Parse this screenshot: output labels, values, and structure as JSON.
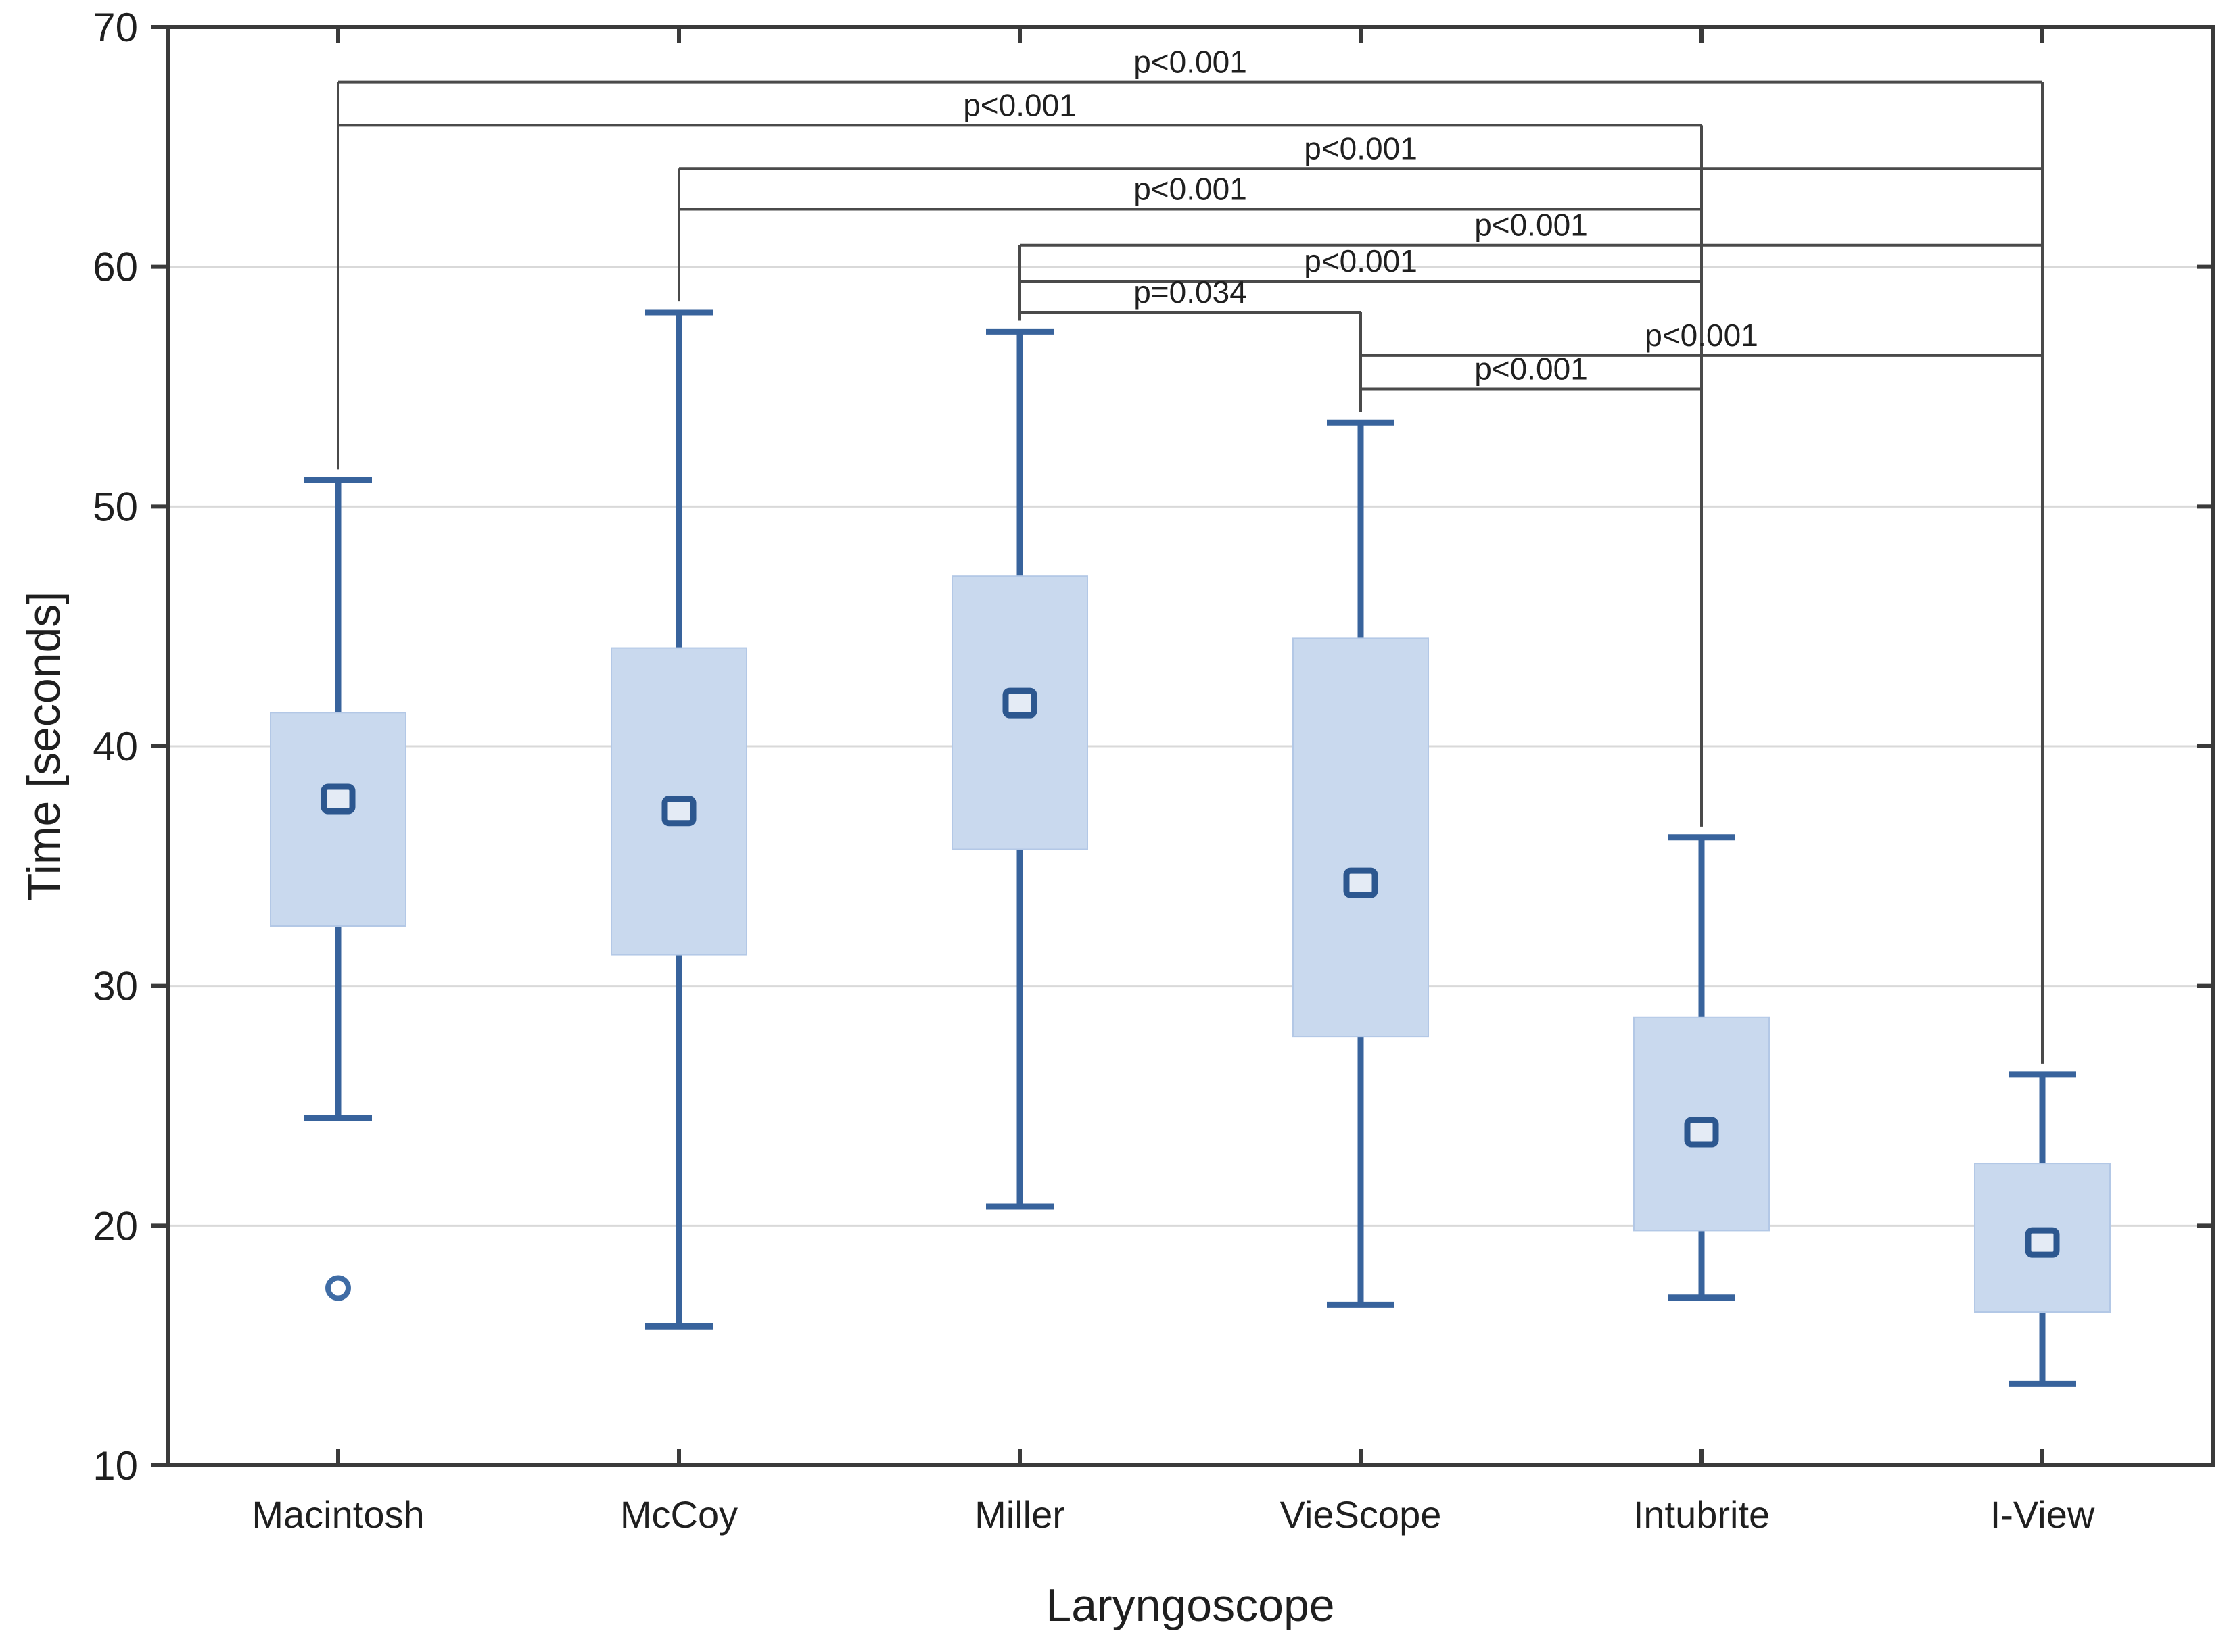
{
  "chart_data": {
    "type": "box",
    "title": "",
    "xlabel": "Laryngoscope",
    "ylabel": "Time [seconds]",
    "ylim": [
      10,
      70
    ],
    "yticks": [
      10,
      20,
      30,
      40,
      50,
      60,
      70
    ],
    "grid": "horizontal-light",
    "legend": "none",
    "categories": [
      "Macintosh",
      "McCoy",
      "Miller",
      "VieScope",
      "Intubrite",
      "I-View"
    ],
    "boxes": [
      {
        "category": "Macintosh",
        "whisker_low": 24.5,
        "q1": 32.5,
        "center": 37.8,
        "q3": 41.4,
        "whisker_high": 51.1,
        "outliers": [
          17.4
        ]
      },
      {
        "category": "McCoy",
        "whisker_low": 15.8,
        "q1": 31.3,
        "center": 37.3,
        "q3": 44.1,
        "whisker_high": 58.1,
        "outliers": []
      },
      {
        "category": "Miller",
        "whisker_low": 20.8,
        "q1": 35.7,
        "center": 41.8,
        "q3": 47.1,
        "whisker_high": 57.3,
        "outliers": []
      },
      {
        "category": "VieScope",
        "whisker_low": 16.7,
        "q1": 27.9,
        "center": 34.3,
        "q3": 44.5,
        "whisker_high": 53.5,
        "outliers": []
      },
      {
        "category": "Intubrite",
        "whisker_low": 17.0,
        "q1": 19.8,
        "center": 23.9,
        "q3": 28.7,
        "whisker_high": 36.2,
        "outliers": []
      },
      {
        "category": "I-View",
        "whisker_low": 13.4,
        "q1": 16.4,
        "center": 19.3,
        "q3": 22.6,
        "whisker_high": 26.3,
        "outliers": []
      }
    ],
    "significance_brackets": [
      {
        "from": "Macintosh",
        "to": "I-View",
        "label": "p<0.001",
        "height": 67.7
      },
      {
        "from": "Macintosh",
        "to": "Intubrite",
        "label": "p<0.001",
        "height": 65.9
      },
      {
        "from": "McCoy",
        "to": "I-View",
        "label": "p<0.001",
        "height": 64.1
      },
      {
        "from": "McCoy",
        "to": "Intubrite",
        "label": "p<0.001",
        "height": 62.4
      },
      {
        "from": "Miller",
        "to": "I-View",
        "label": "p<0.001",
        "height": 60.9
      },
      {
        "from": "Miller",
        "to": "Intubrite",
        "label": "p<0.001",
        "height": 59.4
      },
      {
        "from": "Miller",
        "to": "VieScope",
        "label": "p=0.034",
        "height": 58.1
      },
      {
        "from": "VieScope",
        "to": "I-View",
        "label": "p<0.001",
        "height": 56.3
      },
      {
        "from": "VieScope",
        "to": "Intubrite",
        "label": "p<0.001",
        "height": 54.9
      }
    ],
    "colors": {
      "box_fill": "#c9d9ee",
      "box_edge": "#b3c8e6",
      "whisker": "#38639c",
      "marker_edge": "#2c578f",
      "marker_fill": "#e4ebf5",
      "outlier_edge": "#3f6ca5",
      "bracket_line": "#4a4a4a",
      "axis_line": "#3a3a3a",
      "gridline": "#d9d9d9",
      "text": "#1f1f1f"
    }
  }
}
